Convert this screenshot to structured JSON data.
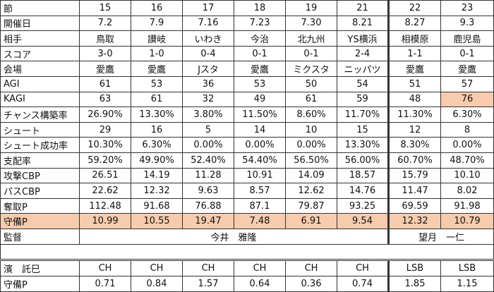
{
  "table": {
    "rows": [
      [
        "節",
        "15",
        "16",
        "17",
        "18",
        "19",
        "21",
        "22",
        "23"
      ],
      [
        "開催日",
        "7.2",
        "7.9",
        "7.16",
        "7.23",
        "7.30",
        "8.21",
        "8.27",
        "9.3"
      ],
      [
        "相手",
        "鳥取",
        "讃岐",
        "いわき",
        "今治",
        "北九州",
        "YS横浜",
        "相模原",
        "鹿児島"
      ],
      [
        "スコア",
        "3-0",
        "1-0",
        "0-4",
        "0-1",
        "0-1",
        "2-4",
        "1-1",
        "0-1"
      ],
      [
        "会場",
        "愛鷹",
        "愛鷹",
        "Jスタ",
        "愛鷹",
        "ミクスタ",
        "ニッパツ",
        "愛鷹",
        "愛鷹"
      ],
      [
        "AGI",
        "61",
        "53",
        "36",
        "53",
        "50",
        "54",
        "51",
        "57"
      ],
      [
        "KAGI",
        "63",
        "61",
        "32",
        "49",
        "61",
        "59",
        "48",
        "76"
      ],
      [
        "チャンス構築率",
        "26.90%",
        "13.30%",
        "3.80%",
        "11.50%",
        "8.60%",
        "11.70%",
        "11.30%",
        "6.30%"
      ],
      [
        "シュート",
        "29",
        "16",
        "5",
        "14",
        "10",
        "15",
        "12",
        "8"
      ],
      [
        "シュート成功率",
        "10.30%",
        "6.30%",
        "0.00%",
        "0.00%",
        "0.00%",
        "13.30%",
        "8.30%",
        "0.00%"
      ],
      [
        "支配率",
        "59.20%",
        "49.90%",
        "52.40%",
        "54.40%",
        "56.50%",
        "56.00%",
        "60.70%",
        "48.70%"
      ],
      [
        "攻撃CBP",
        "26.51",
        "14.19",
        "11.28",
        "10.91",
        "14.09",
        "18.57",
        "15.79",
        "10.10"
      ],
      [
        "パスCBP",
        "22.62",
        "12.32",
        "9.63",
        "8.57",
        "12.62",
        "14.76",
        "11.47",
        "8.02"
      ],
      [
        "奪取P",
        "112.48",
        "91.68",
        "76.88",
        "87.1",
        "79.87",
        "93.25",
        "69.59",
        "91.98"
      ],
      [
        "守備P",
        "10.99",
        "10.55",
        "19.47",
        "7.48",
        "6.91",
        "9.54",
        "12.32",
        "10.79"
      ]
    ],
    "manager_label": "監督",
    "managers": [
      "今井　雅隆",
      "望月　一仁"
    ]
  },
  "player": {
    "rows": [
      [
        "濱　託巳",
        "CH",
        "CH",
        "CH",
        "CH",
        "CH",
        "CH",
        "LSB",
        "LSB"
      ],
      [
        "守備P",
        "0.71",
        "0.84",
        "1.57",
        "0.64",
        "0.36",
        "0.74",
        "1.85",
        "1.15"
      ]
    ]
  }
}
